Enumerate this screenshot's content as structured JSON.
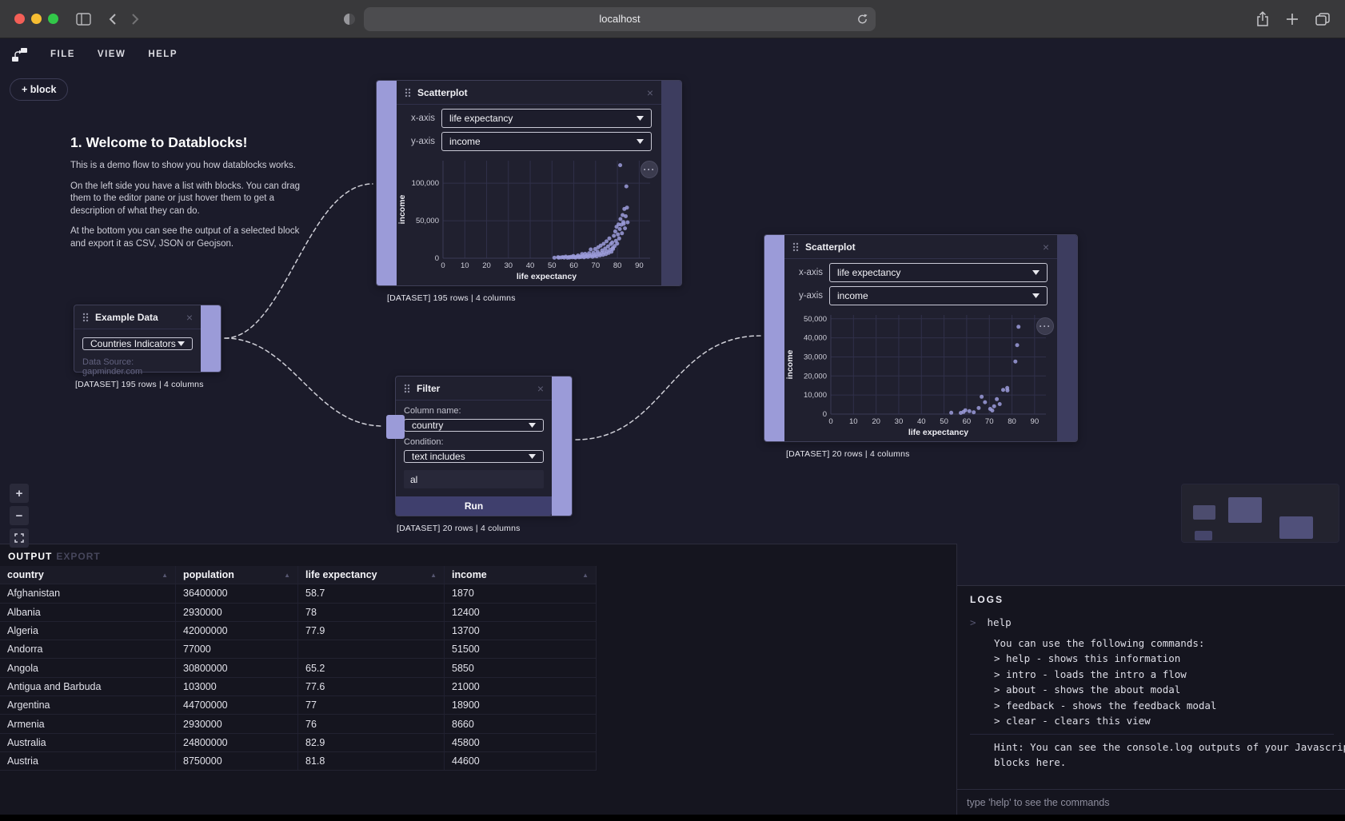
{
  "browser": {
    "url": "localhost"
  },
  "menu": {
    "items": [
      "FILE",
      "VIEW",
      "HELP"
    ]
  },
  "toolbar": {
    "add_block_label": "+ block"
  },
  "controls": {
    "zoom_in": "+",
    "zoom_out": "−",
    "more": "···"
  },
  "welcome": {
    "title": "1. Welcome to Datablocks!",
    "p1": "This is a demo flow to show you how datablocks works.",
    "p2": "On the left side you have a list with blocks. You can drag them to the editor pane or just hover them to get a description of what they can do.",
    "p3": "At the bottom you can see the output of a selected block and export it as CSV, JSON or Geojson."
  },
  "nodes": {
    "example_data": {
      "title": "Example Data",
      "select_value": "Countries Indicators",
      "source": "Data Source: gapminder.com",
      "caption": "[DATASET] 195 rows | 4 columns"
    },
    "scatterplot1": {
      "title": "Scatterplot",
      "x_label": "x-axis",
      "x_value": "life expectancy",
      "y_label": "y-axis",
      "y_value": "income",
      "caption": "[DATASET] 195 rows | 4 columns"
    },
    "filter": {
      "title": "Filter",
      "column_label": "Column name:",
      "column_value": "country",
      "condition_label": "Condition:",
      "condition_value": "text includes",
      "query_value": "al",
      "run_label": "Run",
      "caption": "[DATASET] 20 rows | 4 columns"
    },
    "scatterplot2": {
      "title": "Scatterplot",
      "x_label": "x-axis",
      "x_value": "life expectancy",
      "y_label": "y-axis",
      "y_value": "income",
      "caption": "[DATASET] 20 rows | 4 columns"
    }
  },
  "chart_data": [
    {
      "type": "scatter",
      "title": "",
      "xlabel": "life expectancy",
      "ylabel": "income",
      "xlim": [
        0,
        95
      ],
      "ylim": [
        0,
        130000
      ],
      "xticks": [
        0,
        10,
        20,
        30,
        40,
        50,
        60,
        70,
        80,
        90
      ],
      "xtick_labels": [
        "0",
        "10",
        "20",
        "30",
        "40",
        "50",
        "60",
        "70",
        "80",
        "90"
      ],
      "yticks": [
        0,
        50000,
        100000
      ],
      "ytick_labels": [
        "0",
        "50,000",
        "100,000"
      ],
      "grid": true,
      "point_color": "#9c9cdb",
      "points": [
        [
          51.1,
          620
        ],
        [
          52.8,
          1430
        ],
        [
          53.1,
          780
        ],
        [
          54.2,
          1110
        ],
        [
          55.0,
          1530
        ],
        [
          55.6,
          870
        ],
        [
          56.3,
          2180
        ],
        [
          57.1,
          660
        ],
        [
          57.7,
          1440
        ],
        [
          58.1,
          975
        ],
        [
          58.7,
          1870
        ],
        [
          59.3,
          1190
        ],
        [
          59.8,
          2970
        ],
        [
          60.2,
          1430
        ],
        [
          60.8,
          810
        ],
        [
          61.3,
          1870
        ],
        [
          61.9,
          3640
        ],
        [
          62.4,
          1120
        ],
        [
          62.8,
          2230
        ],
        [
          63.3,
          1580
        ],
        [
          63.8,
          5690
        ],
        [
          64.2,
          2840
        ],
        [
          64.7,
          1140
        ],
        [
          65.2,
          5850
        ],
        [
          65.6,
          2340
        ],
        [
          66.1,
          3870
        ],
        [
          66.5,
          1710
        ],
        [
          67.0,
          6710
        ],
        [
          67.4,
          2920
        ],
        [
          67.8,
          11700
        ],
        [
          68.2,
          4170
        ],
        [
          68.6,
          1970
        ],
        [
          69.0,
          7330
        ],
        [
          69.4,
          3180
        ],
        [
          69.8,
          12300
        ],
        [
          70.1,
          4920
        ],
        [
          70.5,
          2610
        ],
        [
          70.9,
          8680
        ],
        [
          71.2,
          14500
        ],
        [
          71.6,
          5610
        ],
        [
          72.0,
          3720
        ],
        [
          72.3,
          16700
        ],
        [
          72.7,
          6890
        ],
        [
          73.0,
          10500
        ],
        [
          73.4,
          4440
        ],
        [
          73.7,
          19200
        ],
        [
          74.0,
          7850
        ],
        [
          74.4,
          12900
        ],
        [
          74.7,
          5460
        ],
        [
          75.0,
          22500
        ],
        [
          75.3,
          9170
        ],
        [
          75.7,
          15800
        ],
        [
          76.0,
          6980
        ],
        [
          76.3,
          26400
        ],
        [
          76.7,
          11300
        ],
        [
          77.0,
          18900
        ],
        [
          77.3,
          8660
        ],
        [
          77.6,
          21000
        ],
        [
          77.9,
          13700
        ],
        [
          78.0,
          12400
        ],
        [
          78.4,
          29800
        ],
        [
          78.7,
          16200
        ],
        [
          79.0,
          35700
        ],
        [
          79.3,
          23100
        ],
        [
          79.6,
          41900
        ],
        [
          79.9,
          19500
        ],
        [
          80.2,
          31600
        ],
        [
          80.5,
          45100
        ],
        [
          80.8,
          26300
        ],
        [
          81.1,
          38900
        ],
        [
          81.3,
          124000
        ],
        [
          81.4,
          52200
        ],
        [
          81.8,
          44600
        ],
        [
          82.1,
          33200
        ],
        [
          82.4,
          57500
        ],
        [
          82.7,
          48300
        ],
        [
          82.9,
          45800
        ],
        [
          83.2,
          65600
        ],
        [
          83.5,
          39800
        ],
        [
          83.8,
          55900
        ],
        [
          84.1,
          95800
        ],
        [
          84.4,
          67400
        ],
        [
          84.7,
          47800
        ]
      ]
    },
    {
      "type": "scatter",
      "title": "",
      "xlabel": "life expectancy",
      "ylabel": "income",
      "xlim": [
        0,
        95
      ],
      "ylim": [
        0,
        52000
      ],
      "xticks": [
        0,
        10,
        20,
        30,
        40,
        50,
        60,
        70,
        80,
        90
      ],
      "xtick_labels": [
        "0",
        "10",
        "20",
        "30",
        "40",
        "50",
        "60",
        "70",
        "80",
        "90"
      ],
      "yticks": [
        0,
        10000,
        20000,
        30000,
        40000,
        50000
      ],
      "ytick_labels": [
        "0",
        "10,000",
        "20,000",
        "30,000",
        "40,000",
        "50,000"
      ],
      "grid": true,
      "point_color": "#9c9cdb",
      "points": [
        [
          53.2,
          720
        ],
        [
          57.4,
          610
        ],
        [
          58.6,
          1130
        ],
        [
          59.4,
          2010
        ],
        [
          61.2,
          1540
        ],
        [
          63.1,
          980
        ],
        [
          65.3,
          3170
        ],
        [
          66.6,
          9100
        ],
        [
          68.1,
          6250
        ],
        [
          70.4,
          2720
        ],
        [
          71.3,
          1880
        ],
        [
          72.1,
          4100
        ],
        [
          73.3,
          7850
        ],
        [
          74.6,
          5230
        ],
        [
          76.1,
          12700
        ],
        [
          77.9,
          13700
        ],
        [
          78.0,
          12400
        ],
        [
          81.5,
          27600
        ],
        [
          82.3,
          36200
        ],
        [
          82.9,
          45800
        ]
      ]
    }
  ],
  "output_panel": {
    "tabs": [
      "OUTPUT",
      "EXPORT"
    ],
    "table": {
      "columns": [
        "country",
        "population",
        "life expectancy",
        "income"
      ],
      "rows": [
        [
          "Afghanistan",
          "36400000",
          "58.7",
          "1870"
        ],
        [
          "Albania",
          "2930000",
          "78",
          "12400"
        ],
        [
          "Algeria",
          "42000000",
          "77.9",
          "13700"
        ],
        [
          "Andorra",
          "77000",
          "",
          "51500"
        ],
        [
          "Angola",
          "30800000",
          "65.2",
          "5850"
        ],
        [
          "Antigua and Barbuda",
          "103000",
          "77.6",
          "21000"
        ],
        [
          "Argentina",
          "44700000",
          "77",
          "18900"
        ],
        [
          "Armenia",
          "2930000",
          "76",
          "8660"
        ],
        [
          "Australia",
          "24800000",
          "82.9",
          "45800"
        ],
        [
          "Austria",
          "8750000",
          "81.8",
          "44600"
        ]
      ]
    }
  },
  "logs_panel": {
    "title": "LOGS",
    "prompt_command": "help",
    "response_lines": [
      "You can use the following commands:",
      "> help - shows this information",
      "> intro - loads the intro a flow",
      "> about - shows the about modal",
      "> feedback - shows the feedback modal",
      "> clear - clears this view"
    ],
    "hint": "Hint: You can see the console.log outputs of your Javascript blocks here.",
    "input_placeholder": "type 'help' to see the commands"
  }
}
